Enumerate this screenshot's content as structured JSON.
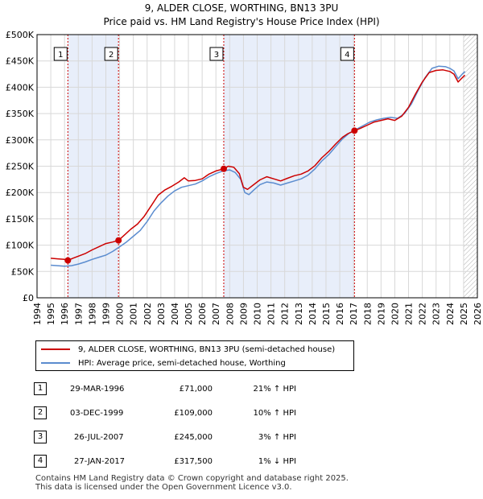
{
  "chart_data": {
    "type": "line",
    "title": "9, ALDER CLOSE, WORTHING, BN13 3PU",
    "subtitle": "Price paid vs. HM Land Registry's House Price Index (HPI)",
    "xlabel": "",
    "ylabel": "",
    "xlim": [
      1994,
      2026
    ],
    "ylim": [
      0,
      500000
    ],
    "x_ticks": [
      "1994",
      "1995",
      "1996",
      "1997",
      "1998",
      "1999",
      "2000",
      "2001",
      "2002",
      "2003",
      "2004",
      "2005",
      "2006",
      "2007",
      "2008",
      "2009",
      "2010",
      "2011",
      "2012",
      "2013",
      "2014",
      "2015",
      "2016",
      "2017",
      "2018",
      "2019",
      "2020",
      "2021",
      "2022",
      "2023",
      "2024",
      "2025",
      "2026"
    ],
    "y_ticks": [
      "£0",
      "£50K",
      "£100K",
      "£150K",
      "£200K",
      "£250K",
      "£300K",
      "£350K",
      "£400K",
      "£450K",
      "£500K"
    ],
    "colors": {
      "property": "#cc0000",
      "hpi": "#5b8ccf",
      "shade": "#e8eefa",
      "grid": "#d8d8d8",
      "data_end_hatch": "#b0b0b0"
    },
    "data_end_year": 2025.0,
    "series": [
      {
        "name": "9, ALDER CLOSE, WORTHING, BN13 3PU (semi-detached house)",
        "color": "#cc0000",
        "points": [
          [
            1995.0,
            75000
          ],
          [
            1995.5,
            74000
          ],
          [
            1996.0,
            73000
          ],
          [
            1996.24,
            71000
          ],
          [
            1996.6,
            75000
          ],
          [
            1997.0,
            79000
          ],
          [
            1997.5,
            84000
          ],
          [
            1998.0,
            91000
          ],
          [
            1998.5,
            97000
          ],
          [
            1999.0,
            103000
          ],
          [
            1999.5,
            106000
          ],
          [
            1999.92,
            109000
          ],
          [
            2000.3,
            118000
          ],
          [
            2000.8,
            130000
          ],
          [
            2001.3,
            140000
          ],
          [
            2001.8,
            155000
          ],
          [
            2002.3,
            175000
          ],
          [
            2002.8,
            195000
          ],
          [
            2003.3,
            205000
          ],
          [
            2003.8,
            212000
          ],
          [
            2004.3,
            220000
          ],
          [
            2004.7,
            228000
          ],
          [
            2005.0,
            222000
          ],
          [
            2005.5,
            223000
          ],
          [
            2006.0,
            226000
          ],
          [
            2006.5,
            235000
          ],
          [
            2007.0,
            241000
          ],
          [
            2007.57,
            245000
          ],
          [
            2007.9,
            250000
          ],
          [
            2008.3,
            248000
          ],
          [
            2008.7,
            236000
          ],
          [
            2009.0,
            210000
          ],
          [
            2009.3,
            206000
          ],
          [
            2009.7,
            214000
          ],
          [
            2010.2,
            224000
          ],
          [
            2010.7,
            230000
          ],
          [
            2011.2,
            226000
          ],
          [
            2011.7,
            222000
          ],
          [
            2012.2,
            227000
          ],
          [
            2012.7,
            232000
          ],
          [
            2013.2,
            235000
          ],
          [
            2013.7,
            241000
          ],
          [
            2014.2,
            251000
          ],
          [
            2014.7,
            266000
          ],
          [
            2015.2,
            278000
          ],
          [
            2015.7,
            292000
          ],
          [
            2016.2,
            305000
          ],
          [
            2016.6,
            312000
          ],
          [
            2017.07,
            317500
          ],
          [
            2017.5,
            322000
          ],
          [
            2018.0,
            328000
          ],
          [
            2018.5,
            334000
          ],
          [
            2019.0,
            337000
          ],
          [
            2019.5,
            340000
          ],
          [
            2020.0,
            337000
          ],
          [
            2020.5,
            345000
          ],
          [
            2021.0,
            362000
          ],
          [
            2021.5,
            387000
          ],
          [
            2022.0,
            410000
          ],
          [
            2022.5,
            428000
          ],
          [
            2023.0,
            432000
          ],
          [
            2023.5,
            433000
          ],
          [
            2024.0,
            430000
          ],
          [
            2024.3,
            425000
          ],
          [
            2024.6,
            410000
          ],
          [
            2024.9,
            418000
          ],
          [
            2025.1,
            423000
          ]
        ]
      },
      {
        "name": "HPI: Average price, semi-detached house, Worthing",
        "color": "#5b8ccf",
        "points": [
          [
            1995.0,
            62000
          ],
          [
            1995.5,
            61000
          ],
          [
            1996.0,
            60000
          ],
          [
            1996.5,
            61000
          ],
          [
            1997.0,
            64000
          ],
          [
            1997.5,
            68000
          ],
          [
            1998.0,
            73000
          ],
          [
            1998.5,
            77000
          ],
          [
            1999.0,
            81000
          ],
          [
            1999.5,
            88000
          ],
          [
            2000.0,
            97000
          ],
          [
            2000.5,
            106000
          ],
          [
            2001.0,
            117000
          ],
          [
            2001.5,
            128000
          ],
          [
            2002.0,
            145000
          ],
          [
            2002.5,
            165000
          ],
          [
            2003.0,
            180000
          ],
          [
            2003.5,
            193000
          ],
          [
            2004.0,
            203000
          ],
          [
            2004.5,
            210000
          ],
          [
            2005.0,
            213000
          ],
          [
            2005.5,
            216000
          ],
          [
            2006.0,
            222000
          ],
          [
            2006.5,
            230000
          ],
          [
            2007.0,
            236000
          ],
          [
            2007.5,
            241000
          ],
          [
            2008.0,
            243000
          ],
          [
            2008.4,
            238000
          ],
          [
            2008.8,
            225000
          ],
          [
            2009.1,
            200000
          ],
          [
            2009.4,
            196000
          ],
          [
            2009.8,
            206000
          ],
          [
            2010.2,
            215000
          ],
          [
            2010.7,
            220000
          ],
          [
            2011.2,
            218000
          ],
          [
            2011.7,
            214000
          ],
          [
            2012.2,
            218000
          ],
          [
            2012.7,
            222000
          ],
          [
            2013.2,
            226000
          ],
          [
            2013.7,
            233000
          ],
          [
            2014.2,
            245000
          ],
          [
            2014.7,
            260000
          ],
          [
            2015.2,
            272000
          ],
          [
            2015.7,
            287000
          ],
          [
            2016.2,
            302000
          ],
          [
            2016.7,
            313000
          ],
          [
            2017.2,
            320000
          ],
          [
            2017.7,
            327000
          ],
          [
            2018.2,
            334000
          ],
          [
            2018.7,
            338000
          ],
          [
            2019.2,
            341000
          ],
          [
            2019.7,
            343000
          ],
          [
            2020.2,
            341000
          ],
          [
            2020.7,
            350000
          ],
          [
            2021.2,
            368000
          ],
          [
            2021.7,
            394000
          ],
          [
            2022.2,
            418000
          ],
          [
            2022.7,
            436000
          ],
          [
            2023.2,
            440000
          ],
          [
            2023.7,
            439000
          ],
          [
            2024.0,
            436000
          ],
          [
            2024.3,
            431000
          ],
          [
            2024.6,
            416000
          ],
          [
            2024.9,
            425000
          ],
          [
            2025.1,
            430000
          ]
        ]
      }
    ],
    "sales": [
      {
        "id": "1",
        "year": 1996.24,
        "price": 71000
      },
      {
        "id": "2",
        "year": 1999.92,
        "price": 109000
      },
      {
        "id": "3",
        "year": 2007.57,
        "price": 245000
      },
      {
        "id": "4",
        "year": 2017.07,
        "price": 317500
      }
    ]
  },
  "legend": {
    "property_label": "9, ALDER CLOSE, WORTHING, BN13 3PU (semi-detached house)",
    "hpi_label": "HPI: Average price, semi-detached house, Worthing"
  },
  "sales_table": [
    {
      "num": "1",
      "date": "29-MAR-1996",
      "price": "£71,000",
      "hpi": "21% ↑ HPI"
    },
    {
      "num": "2",
      "date": "03-DEC-1999",
      "price": "£109,000",
      "hpi": "10% ↑ HPI"
    },
    {
      "num": "3",
      "date": "26-JUL-2007",
      "price": "£245,000",
      "hpi": "3% ↑ HPI"
    },
    {
      "num": "4",
      "date": "27-JAN-2017",
      "price": "£317,500",
      "hpi": "1% ↓ HPI"
    }
  ],
  "footer": {
    "line1": "Contains HM Land Registry data © Crown copyright and database right 2025.",
    "line2": "This data is licensed under the Open Government Licence v3.0."
  }
}
